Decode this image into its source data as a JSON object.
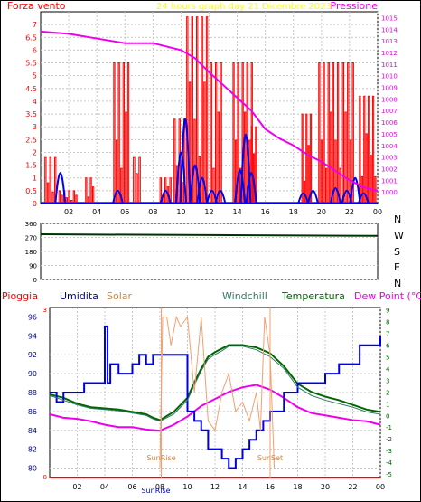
{
  "page": {
    "border_color": "#000000",
    "plot_bg": "#ffffff"
  },
  "chart_data": [
    {
      "id": "wind-pressure",
      "type": "line",
      "header": {
        "left": "Forza vento",
        "center": "24 hours graph day  21 Dicembre 2023",
        "right": "Pressione"
      },
      "colors": {
        "wind_avg": "#0000ee",
        "wind_gust": "#ff0000",
        "pressure": "#ee00ee",
        "left_label": "#ff0000",
        "right_label": "#ee00ee",
        "center_label": "#ffff00"
      },
      "x_ticks": [
        "02",
        "04",
        "06",
        "08",
        "10",
        "12",
        "14",
        "16",
        "18",
        "20",
        "22",
        "00"
      ],
      "x_range": [
        0,
        24
      ],
      "y_left": {
        "range": [
          0,
          7.5
        ],
        "ticks": [
          "0",
          "0.5",
          "1",
          "1.5",
          "2",
          "2.5",
          "3",
          "3.5",
          "4",
          "4.5",
          "5",
          "5.5",
          "6",
          "6.5",
          "7"
        ]
      },
      "y_right": {
        "range": [
          999,
          1015.5
        ],
        "ticks": [
          "1000",
          "1001",
          "1002",
          "1003",
          "1004",
          "1005",
          "1006",
          "1007",
          "1008",
          "1009",
          "1010",
          "1011",
          "1012",
          "1013",
          "1014",
          "1015"
        ]
      },
      "pressure": {
        "x": [
          0,
          2,
          4,
          6,
          8,
          10,
          11,
          12,
          13,
          14,
          15,
          16,
          17,
          18,
          19,
          20,
          21,
          22,
          23,
          24
        ],
        "y": [
          1013.8,
          1013.6,
          1013.2,
          1012.8,
          1012.8,
          1012.2,
          1011.5,
          1010.3,
          1009.2,
          1008.1,
          1007.0,
          1005.4,
          1004.6,
          1004.0,
          1003.2,
          1002.6,
          1001.8,
          1001.0,
          1000.4,
          1000.1
        ]
      },
      "wind_gust_segments": [
        [
          0.3,
          1.0,
          1.8
        ],
        [
          1.3,
          2.5,
          0.5
        ],
        [
          3.2,
          3.7,
          1.0
        ],
        [
          5.2,
          6.2,
          5.5
        ],
        [
          6.6,
          7.0,
          1.8
        ],
        [
          8.5,
          9.2,
          1.0
        ],
        [
          9.5,
          10.2,
          3.3
        ],
        [
          10.4,
          11.8,
          7.3
        ],
        [
          12.1,
          12.8,
          5.5
        ],
        [
          13.7,
          15.0,
          5.5
        ],
        [
          15.0,
          15.3,
          3.0
        ],
        [
          18.6,
          19.2,
          3.5
        ],
        [
          19.8,
          21.3,
          5.5
        ],
        [
          21.5,
          22.2,
          5.5
        ],
        [
          22.7,
          23.8,
          4.2
        ]
      ],
      "wind_avg_spikes": [
        [
          1.4,
          1.2
        ],
        [
          5.5,
          0.5
        ],
        [
          8.9,
          0.5
        ],
        [
          10.0,
          2.0
        ],
        [
          10.3,
          3.3
        ],
        [
          11.0,
          1.5
        ],
        [
          11.5,
          1.0
        ],
        [
          12.2,
          0.5
        ],
        [
          12.8,
          0.5
        ],
        [
          14.2,
          1.3
        ],
        [
          14.6,
          2.7
        ],
        [
          15.0,
          1.2
        ],
        [
          18.7,
          0.4
        ],
        [
          19.4,
          0.5
        ],
        [
          21.0,
          0.6
        ],
        [
          21.8,
          0.5
        ],
        [
          22.4,
          1.0
        ],
        [
          23.0,
          0.4
        ]
      ]
    },
    {
      "id": "wind-direction",
      "type": "line",
      "y_ticks": [
        "360",
        "270",
        "180",
        "90",
        "0"
      ],
      "y_range": [
        0,
        360
      ],
      "compass": [
        "N",
        "W",
        "S",
        "E",
        "N"
      ],
      "series": {
        "x": [
          0,
          12,
          24
        ],
        "y": [
          290,
          285,
          280
        ]
      },
      "color": "#003300"
    },
    {
      "id": "temp-humidity",
      "type": "line",
      "header_labels": [
        {
          "text": "Pioggia",
          "color": "#ff0000"
        },
        {
          "text": "Umidita",
          "color": "#00008b"
        },
        {
          "text": "Solar",
          "color": "#cc8844"
        },
        {
          "text": "Windchill",
          "color": "#337766"
        },
        {
          "text": "Temperatura",
          "color": "#006600"
        },
        {
          "text": "Dew Point (°C)",
          "color": "#ee00ee"
        }
      ],
      "x_ticks": [
        "02",
        "04",
        "06",
        "08",
        "10",
        "12",
        "14",
        "16",
        "18",
        "20",
        "22",
        "00"
      ],
      "x_range": [
        0,
        24
      ],
      "y_left": {
        "range": [
          79,
          97
        ],
        "ticks": [
          "80",
          "82",
          "84",
          "86",
          "88",
          "90",
          "92",
          "94",
          "96"
        ]
      },
      "y_right": {
        "range": [
          -5.3,
          9.2
        ],
        "ticks": [
          "-5",
          "-4",
          "-3",
          "-2",
          "-1",
          "0",
          "1",
          "2",
          "3",
          "4",
          "5",
          "6",
          "7",
          "8",
          "9"
        ]
      },
      "y_left_top_label": "3",
      "y_left_bottom_label": "0",
      "annotations": {
        "sunrise_top": "SunRise",
        "sunset_top": "SunSet",
        "sunrise_bottom": "SunRise",
        "sunrise_x": 8.1,
        "sunset_x": 16.0
      },
      "series": [
        {
          "name": "Temperatura",
          "color": "#006600",
          "axis": "right",
          "x": [
            0,
            1,
            2,
            3,
            4,
            5,
            6,
            7,
            7.5,
            8,
            9,
            10,
            10.5,
            11,
            11.5,
            12,
            12.5,
            13,
            14,
            15,
            16,
            17,
            18,
            19,
            20,
            21,
            22,
            23,
            24
          ],
          "y": [
            1.8,
            1.5,
            1.0,
            0.7,
            0.6,
            0.5,
            0.3,
            0.1,
            -0.2,
            -0.4,
            0.3,
            1.5,
            2.8,
            4.0,
            5.0,
            5.4,
            5.7,
            6.0,
            6.0,
            5.8,
            5.3,
            4.2,
            2.7,
            2.0,
            1.6,
            1.3,
            0.9,
            0.5,
            0.3
          ]
        },
        {
          "name": "Dew Point",
          "color": "#ee00ee",
          "axis": "right",
          "x": [
            0,
            1,
            2,
            3,
            4,
            5,
            6,
            7,
            8,
            9,
            10,
            11,
            12,
            13,
            14,
            15,
            16,
            17,
            18,
            19,
            20,
            21,
            22,
            23,
            24
          ],
          "y": [
            0.1,
            -0.2,
            -0.3,
            -0.5,
            -0.8,
            -1.0,
            -1.0,
            -1.2,
            -1.3,
            -0.8,
            -0.1,
            0.8,
            1.4,
            2.0,
            2.4,
            2.6,
            2.2,
            1.5,
            0.7,
            0.2,
            0.0,
            -0.2,
            -0.4,
            -0.5,
            -0.8
          ]
        },
        {
          "name": "Umidita",
          "color": "#0000dd",
          "axis": "left",
          "x": [
            0,
            0.5,
            1,
            1.5,
            2,
            2.5,
            3,
            3.8,
            4,
            4.2,
            4.4,
            5,
            6,
            6.5,
            7,
            7.5,
            8,
            9,
            9.5,
            10,
            10.5,
            11,
            11.5,
            12,
            12.5,
            13,
            13.5,
            14,
            14.5,
            15,
            15.5,
            16,
            16.5,
            17,
            18,
            19,
            20,
            21,
            22,
            22.5,
            23,
            23.5,
            24
          ],
          "y": [
            88,
            87,
            88,
            88,
            88,
            89,
            89,
            89,
            95,
            89,
            91,
            90,
            91,
            92,
            91,
            92,
            92,
            92,
            92,
            86,
            85,
            84,
            82,
            82,
            81,
            80,
            81,
            82,
            83,
            84,
            85,
            86,
            86,
            88,
            89,
            89,
            90,
            91,
            91,
            93,
            93,
            93,
            94
          ]
        },
        {
          "name": "Windchill",
          "color": "#337766",
          "axis": "right",
          "x": [
            0,
            1,
            2,
            3,
            4,
            5,
            6,
            7,
            7.5,
            8,
            9,
            10,
            10.5,
            11,
            11.5,
            12,
            12.5,
            13,
            14,
            15,
            16,
            17,
            18,
            19,
            20,
            21,
            22,
            23,
            24
          ],
          "y": [
            1.7,
            1.3,
            0.9,
            0.6,
            0.5,
            0.4,
            0.2,
            0.0,
            -0.3,
            -0.5,
            0.1,
            1.3,
            2.6,
            3.8,
            4.8,
            5.2,
            5.5,
            5.9,
            5.9,
            5.6,
            5.0,
            4.0,
            2.4,
            1.7,
            1.3,
            1.0,
            0.7,
            0.3,
            0.1
          ]
        },
        {
          "name": "Solar",
          "color": "#f0a070",
          "axis": "left",
          "x": [
            8.0,
            8.2,
            8.5,
            8.8,
            9.2,
            9.5,
            10,
            10.5,
            11,
            11.5,
            12,
            12.5,
            13,
            13.5,
            14,
            14.5,
            15,
            15.3,
            15.6,
            16.0,
            16.3
          ],
          "y": [
            80,
            96,
            96,
            93,
            96,
            95,
            96,
            88,
            96,
            85,
            84,
            88,
            90,
            86,
            87,
            85,
            88,
            84,
            96,
            92,
            80
          ]
        },
        {
          "name": "Pioggia",
          "color": "#ff0000",
          "axis": "left",
          "x": [
            0,
            24
          ],
          "y": [
            79,
            79
          ]
        }
      ]
    }
  ]
}
